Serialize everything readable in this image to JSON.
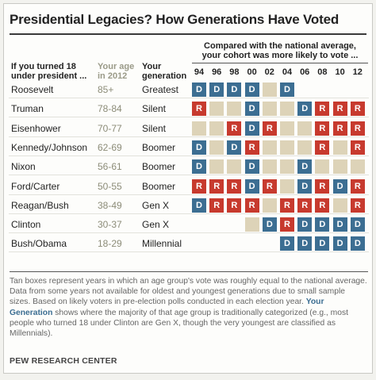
{
  "title": "Presidential Legacies? How Generations Have Voted",
  "headers": {
    "president_line1": "If you turned 18",
    "president_line2": "under president ...",
    "age_line1": "Your age",
    "age_line2": "in 2012",
    "gen_line1": "Your",
    "gen_line2": "generation"
  },
  "compared_line1": "Compared with the national average,",
  "compared_line2": "your cohort was more likely to vote ...",
  "footnote": {
    "text_before": "Tan boxes represent years in which an age group's vote was roughly equal to the national average. Data from some years not available for oldest and youngest generations due to small sample sizes. Based on likely voters in pre-election polls conducted in each election year. ",
    "term": "Your Generation",
    "text_after": " shows where the majority of that age group is traditionally categorized (e.g., most people who turned 18 under Clinton are Gen X, though the very youngest are classified as Millennials)."
  },
  "source": "PEW RESEARCH CENTER",
  "colors": {
    "D": "#3c6e92",
    "R": "#c73a2e",
    "E": "#ddd3b8"
  },
  "chart_data": {
    "type": "table",
    "title": "Presidential Legacies? How Generations Have Voted",
    "years": [
      "94",
      "96",
      "98",
      "00",
      "02",
      "04",
      "06",
      "08",
      "10",
      "12"
    ],
    "legend": {
      "D": "D",
      "R": "R",
      "E": ""
    },
    "rows": [
      {
        "president": "Roosevelt",
        "age": "85+",
        "generation": "Greatest",
        "votes": [
          "D",
          "D",
          "D",
          "D",
          "E",
          "D",
          null,
          null,
          null,
          null
        ]
      },
      {
        "president": "Truman",
        "age": "78-84",
        "generation": "Silent",
        "votes": [
          "R",
          "E",
          "E",
          "D",
          "E",
          "E",
          "D",
          "R",
          "R",
          "R"
        ]
      },
      {
        "president": "Eisenhower",
        "age": "70-77",
        "generation": "Silent",
        "votes": [
          "E",
          "E",
          "R",
          "D",
          "R",
          "E",
          "E",
          "R",
          "R",
          "R"
        ]
      },
      {
        "president": "Kennedy/Johnson",
        "age": "62-69",
        "generation": "Boomer",
        "votes": [
          "D",
          "E",
          "D",
          "R",
          "E",
          "E",
          "E",
          "R",
          "E",
          "R"
        ]
      },
      {
        "president": "Nixon",
        "age": "56-61",
        "generation": "Boomer",
        "votes": [
          "D",
          "E",
          "E",
          "D",
          "E",
          "E",
          "D",
          "E",
          "E",
          "E"
        ]
      },
      {
        "president": "Ford/Carter",
        "age": "50-55",
        "generation": "Boomer",
        "votes": [
          "R",
          "R",
          "R",
          "D",
          "R",
          "E",
          "D",
          "R",
          "D",
          "R"
        ]
      },
      {
        "president": "Reagan/Bush",
        "age": "38-49",
        "generation": "Gen X",
        "votes": [
          "D",
          "R",
          "R",
          "R",
          "E",
          "R",
          "R",
          "R",
          "E",
          "R"
        ]
      },
      {
        "president": "Clinton",
        "age": "30-37",
        "generation": "Gen X",
        "votes": [
          null,
          null,
          null,
          "E",
          "D",
          "R",
          "D",
          "D",
          "D",
          "D"
        ]
      },
      {
        "president": "Bush/Obama",
        "age": "18-29",
        "generation": "Millennial",
        "votes": [
          null,
          null,
          null,
          null,
          null,
          "D",
          "D",
          "D",
          "D",
          "D"
        ]
      }
    ]
  }
}
